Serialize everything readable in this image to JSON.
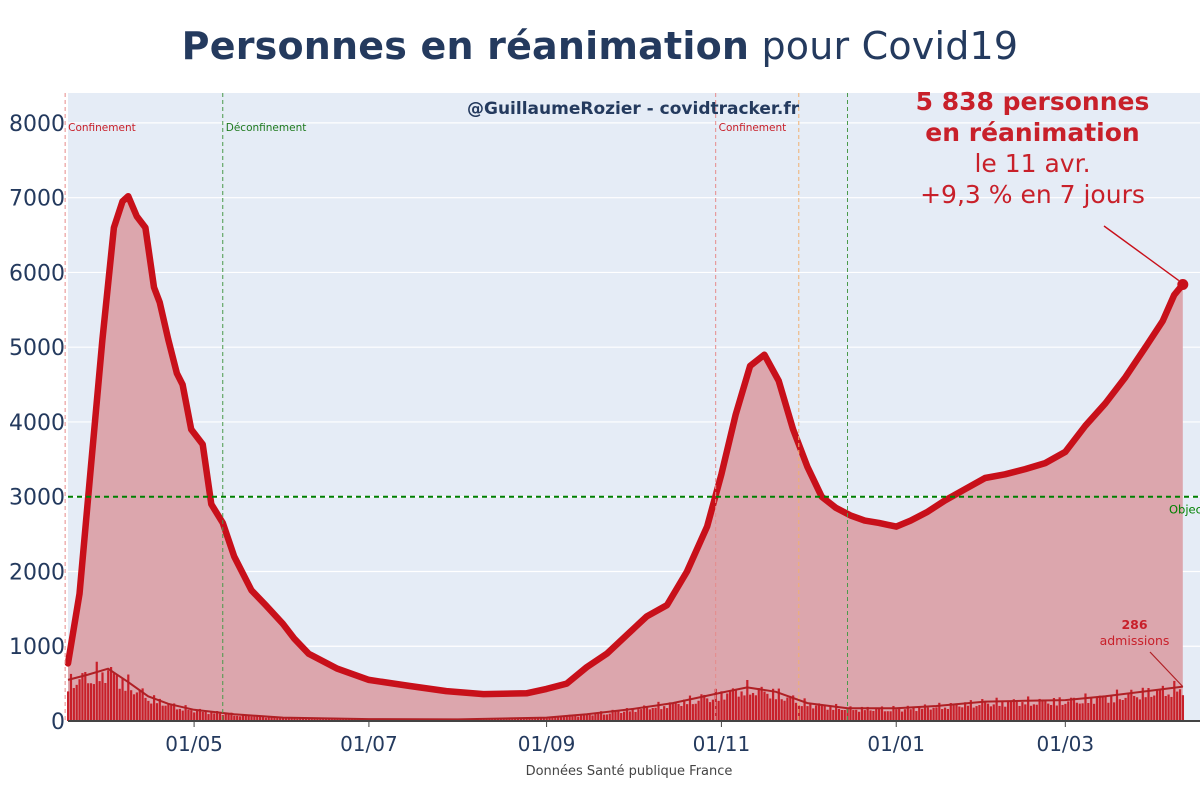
{
  "header": {
    "title_bold": "Personnes en réanimation",
    "title_rest": " pour Covid19"
  },
  "watermark": "@GuillaumeRozier - covidtracker.fr",
  "source": "Données Santé publique France",
  "annotation": {
    "line1": "5 838 personnes",
    "line2": "en réanimation",
    "line3": "le 11 avr.",
    "line4": "+9,3 % en 7 jours"
  },
  "admissions_annotation": {
    "value": "286",
    "label": "admissions"
  },
  "colors": {
    "main_line": "#c8101a",
    "area_fill": "#dca6ad",
    "admissions_bar": "#c8202a",
    "admissions_line": "#b02025",
    "plot_bg": "#e5ecf6",
    "grid": "#ffffff",
    "text": "#243a5e",
    "objective": "#008000"
  },
  "chart_data": {
    "type": "area",
    "xlabel": "",
    "ylabel": "",
    "ylim": [
      0,
      8400
    ],
    "xlim": [
      "2020-03-18",
      "2021-04-17"
    ],
    "yticks": [
      0,
      1000,
      2000,
      3000,
      4000,
      5000,
      6000,
      7000,
      8000
    ],
    "xticks": [
      {
        "date": "2020-05-01",
        "label": "01/05"
      },
      {
        "date": "2020-07-01",
        "label": "01/07"
      },
      {
        "date": "2020-09-01",
        "label": "01/09"
      },
      {
        "date": "2020-11-01",
        "label": "01/11"
      },
      {
        "date": "2021-01-01",
        "label": "01/01"
      },
      {
        "date": "2021-03-01",
        "label": "01/03"
      }
    ],
    "grid": true,
    "series": [
      {
        "points": [
          [
            "2020-03-18",
            770
          ],
          [
            "2020-03-22",
            1700
          ],
          [
            "2020-03-26",
            3400
          ],
          [
            "2020-03-30",
            5100
          ],
          [
            "2020-04-03",
            6600
          ],
          [
            "2020-04-06",
            6950
          ],
          [
            "2020-04-08",
            7020
          ],
          [
            "2020-04-11",
            6750
          ],
          [
            "2020-04-14",
            6600
          ],
          [
            "2020-04-17",
            5800
          ],
          [
            "2020-04-19",
            5600
          ],
          [
            "2020-04-22",
            5100
          ],
          [
            "2020-04-25",
            4650
          ],
          [
            "2020-04-27",
            4500
          ],
          [
            "2020-04-30",
            3900
          ],
          [
            "2020-05-04",
            3700
          ],
          [
            "2020-05-07",
            2900
          ],
          [
            "2020-05-11",
            2650
          ],
          [
            "2020-05-15",
            2200
          ],
          [
            "2020-05-21",
            1750
          ],
          [
            "2020-05-26",
            1550
          ],
          [
            "2020-06-01",
            1300
          ],
          [
            "2020-06-05",
            1100
          ],
          [
            "2020-06-10",
            900
          ],
          [
            "2020-06-20",
            700
          ],
          [
            "2020-07-01",
            550
          ],
          [
            "2020-07-15",
            470
          ],
          [
            "2020-07-28",
            400
          ],
          [
            "2020-08-10",
            360
          ],
          [
            "2020-08-25",
            370
          ],
          [
            "2020-09-01",
            430
          ],
          [
            "2020-09-08",
            500
          ],
          [
            "2020-09-15",
            720
          ],
          [
            "2020-09-22",
            900
          ],
          [
            "2020-09-29",
            1150
          ],
          [
            "2020-10-06",
            1400
          ],
          [
            "2020-10-13",
            1550
          ],
          [
            "2020-10-20",
            2000
          ],
          [
            "2020-10-27",
            2600
          ],
          [
            "2020-11-01",
            3300
          ],
          [
            "2020-11-06",
            4100
          ],
          [
            "2020-11-11",
            4750
          ],
          [
            "2020-11-16",
            4900
          ],
          [
            "2020-11-21",
            4550
          ],
          [
            "2020-11-26",
            3900
          ],
          [
            "2020-12-01",
            3400
          ],
          [
            "2020-12-06",
            3000
          ],
          [
            "2020-12-11",
            2850
          ],
          [
            "2020-12-16",
            2750
          ],
          [
            "2020-12-21",
            2680
          ],
          [
            "2020-12-26",
            2650
          ],
          [
            "2021-01-01",
            2600
          ],
          [
            "2021-01-06",
            2680
          ],
          [
            "2021-01-12",
            2800
          ],
          [
            "2021-01-18",
            2950
          ],
          [
            "2021-01-25",
            3100
          ],
          [
            "2021-02-01",
            3250
          ],
          [
            "2021-02-08",
            3300
          ],
          [
            "2021-02-15",
            3370
          ],
          [
            "2021-02-22",
            3450
          ],
          [
            "2021-03-01",
            3600
          ],
          [
            "2021-03-08",
            3950
          ],
          [
            "2021-03-15",
            4250
          ],
          [
            "2021-03-22",
            4600
          ],
          [
            "2021-03-29",
            5000
          ],
          [
            "2021-04-04",
            5350
          ],
          [
            "2021-04-08",
            5700
          ],
          [
            "2021-04-11",
            5838
          ]
        ]
      },
      {
        "type": "bar+line",
        "points": [
          [
            "2020-03-18",
            550
          ],
          [
            "2020-03-25",
            620
          ],
          [
            "2020-04-01",
            700
          ],
          [
            "2020-04-08",
            520
          ],
          [
            "2020-04-15",
            330
          ],
          [
            "2020-04-22",
            230
          ],
          [
            "2020-05-01",
            150
          ],
          [
            "2020-05-15",
            90
          ],
          [
            "2020-06-01",
            45
          ],
          [
            "2020-07-01",
            25
          ],
          [
            "2020-08-01",
            22
          ],
          [
            "2020-09-01",
            45
          ],
          [
            "2020-09-15",
            90
          ],
          [
            "2020-10-01",
            160
          ],
          [
            "2020-10-15",
            240
          ],
          [
            "2020-11-01",
            380
          ],
          [
            "2020-11-10",
            450
          ],
          [
            "2020-11-20",
            390
          ],
          [
            "2020-12-01",
            240
          ],
          [
            "2020-12-15",
            170
          ],
          [
            "2021-01-01",
            170
          ],
          [
            "2021-01-15",
            200
          ],
          [
            "2021-02-01",
            260
          ],
          [
            "2021-02-15",
            270
          ],
          [
            "2021-03-01",
            280
          ],
          [
            "2021-03-15",
            330
          ],
          [
            "2021-04-01",
            410
          ],
          [
            "2021-04-11",
            460
          ]
        ]
      }
    ],
    "vlines": [
      {
        "date": "2020-03-17",
        "label": "Confinement",
        "color": "#e68a8a"
      },
      {
        "date": "2020-05-11",
        "label": "Déconfinement",
        "color": "#4a9a4a"
      },
      {
        "date": "2020-10-30",
        "label": "Confinement",
        "color": "#e68a8a"
      },
      {
        "date": "2020-11-28",
        "label": "",
        "color": "#f0b070"
      },
      {
        "date": "2020-12-15",
        "label": "",
        "color": "#4a9a4a"
      }
    ],
    "hline": {
      "value": 3000,
      "label": "Objectif",
      "color": "#008000"
    }
  }
}
